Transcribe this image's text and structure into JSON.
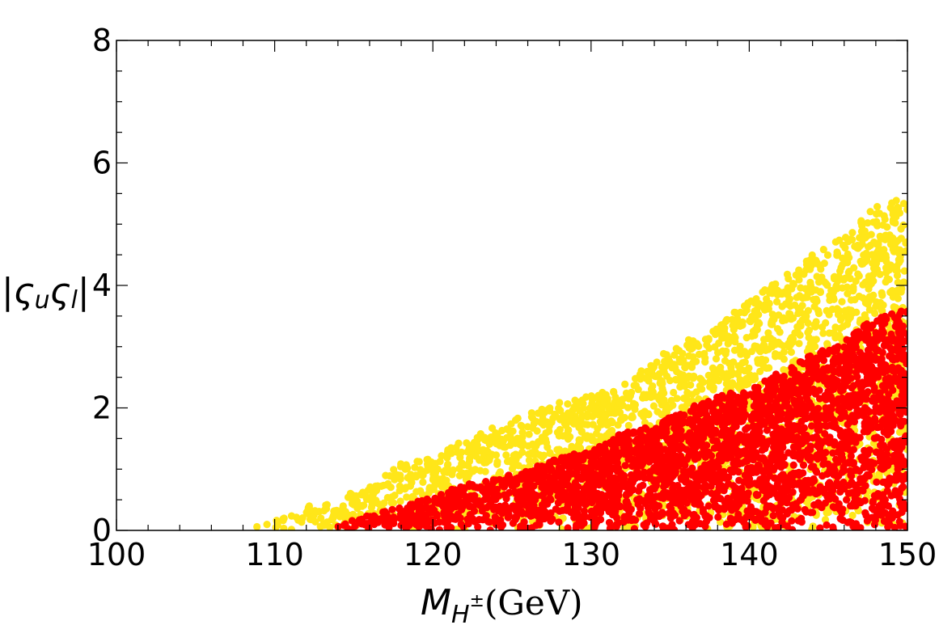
{
  "chart_data": {
    "type": "scatter",
    "title": "",
    "xlabel": {
      "base": "M",
      "sub": "H",
      "sup": "±",
      "unit": "(GeV)"
    },
    "ylabel": "|ς",
    "ylabel_parts": {
      "open": "|",
      "s1": "ς",
      "sub1": "u",
      "s2": "ς",
      "sub2": "l",
      "close": "|"
    },
    "xlim": [
      100,
      150
    ],
    "ylim": [
      0,
      8
    ],
    "xticks": [
      100,
      110,
      120,
      130,
      140,
      150
    ],
    "yticks": [
      0,
      2,
      4,
      6,
      8
    ],
    "grid": false,
    "legend": "none",
    "series": [
      {
        "color": "#ffe619",
        "description_bounds": {
          "x_start": 108.3,
          "upper_envelope": [
            [
              108.3,
              0.05
            ],
            [
              112,
              0.4
            ],
            [
              116,
              0.7
            ],
            [
              118,
              1.1
            ],
            [
              120,
              1.2
            ],
            [
              122,
              1.5
            ],
            [
              124,
              1.7
            ],
            [
              126,
              1.9
            ],
            [
              128,
              2.1
            ],
            [
              130,
              2.2
            ],
            [
              132,
              2.4
            ],
            [
              134,
              2.8
            ],
            [
              136,
              3.1
            ],
            [
              138,
              3.3
            ],
            [
              140,
              3.8
            ],
            [
              142,
              4.1
            ],
            [
              144,
              4.5
            ],
            [
              146,
              4.8
            ],
            [
              148,
              5.3
            ],
            [
              150,
              5.5
            ]
          ]
        }
      },
      {
        "color": "#ff0000",
        "description_bounds": {
          "x_start": 113.5,
          "upper_envelope": [
            [
              113.5,
              0.05
            ],
            [
              116,
              0.25
            ],
            [
              118,
              0.4
            ],
            [
              120,
              0.55
            ],
            [
              122,
              0.75
            ],
            [
              124,
              0.85
            ],
            [
              126,
              1.0
            ],
            [
              128,
              1.2
            ],
            [
              130,
              1.3
            ],
            [
              132,
              1.6
            ],
            [
              134,
              1.7
            ],
            [
              136,
              2.0
            ],
            [
              138,
              2.2
            ],
            [
              140,
              2.3
            ],
            [
              142,
              2.6
            ],
            [
              144,
              2.9
            ],
            [
              146,
              3.1
            ],
            [
              148,
              3.5
            ],
            [
              150,
              3.6
            ]
          ]
        }
      }
    ]
  }
}
